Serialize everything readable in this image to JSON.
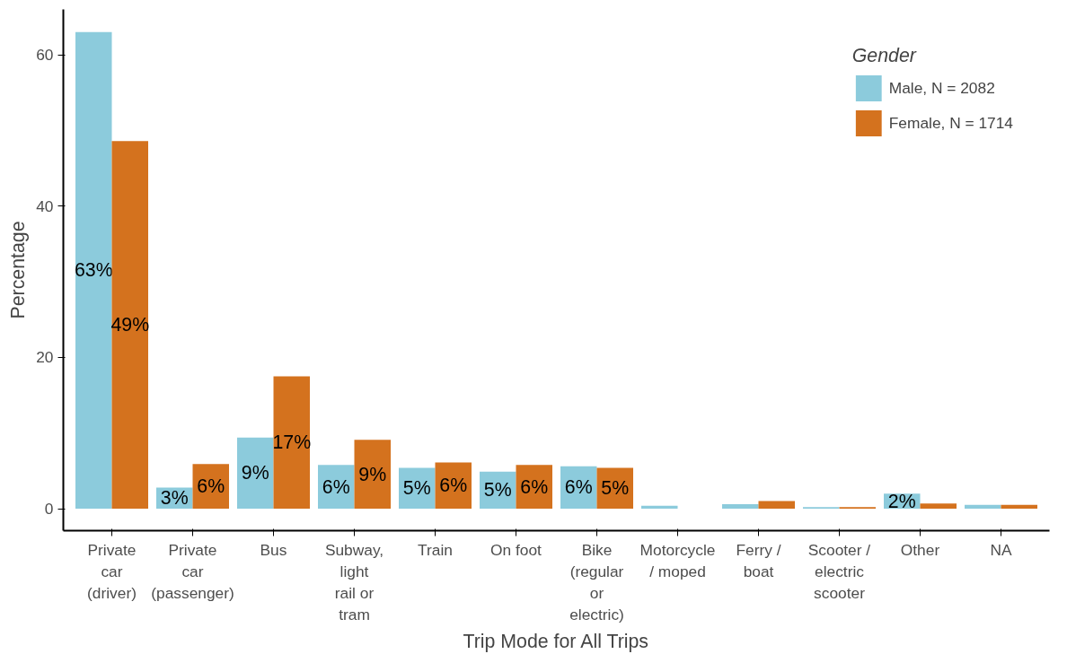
{
  "chart_data": {
    "type": "bar",
    "xlabel": "Trip Mode for All Trips",
    "ylabel": "Percentage",
    "legend_title": "Gender",
    "legend": "top right",
    "grid": false,
    "categories": [
      "Private\ncar\n(driver)",
      "Private\ncar\n(passenger)",
      "Bus",
      "Subway,\nlight\nrail or\ntram",
      "Train",
      "On foot",
      "Bike\n(regular\nor\nelectric)",
      "Motorcycle\n/ moped",
      "Ferry /\nboat",
      "Scooter /\nelectric\nscooter",
      "Other",
      "NA"
    ],
    "ylim": [
      -2.9,
      66
    ],
    "yticks": [
      0,
      20,
      40,
      60
    ],
    "series": [
      {
        "name": "Male, N = 2082",
        "color": "#8ccbdc",
        "values": [
          63,
          2.8,
          9.4,
          5.8,
          5.4,
          4.9,
          5.6,
          0.4,
          0.6,
          0.2,
          2.0,
          0.5
        ],
        "value_labels": [
          "63%",
          "3%",
          "9%",
          "6%",
          "5%",
          "5%",
          "6%",
          null,
          null,
          null,
          "2%",
          null
        ]
      },
      {
        "name": "Female, N = 1714",
        "color": "#d4721e",
        "values": [
          48.6,
          5.9,
          17.5,
          9.1,
          6.1,
          5.8,
          5.4,
          null,
          1.0,
          0.2,
          0.7,
          0.5
        ],
        "value_labels": [
          "49%",
          "6%",
          "17%",
          "9%",
          "6%",
          "6%",
          "5%",
          null,
          null,
          null,
          null,
          null
        ]
      }
    ]
  }
}
